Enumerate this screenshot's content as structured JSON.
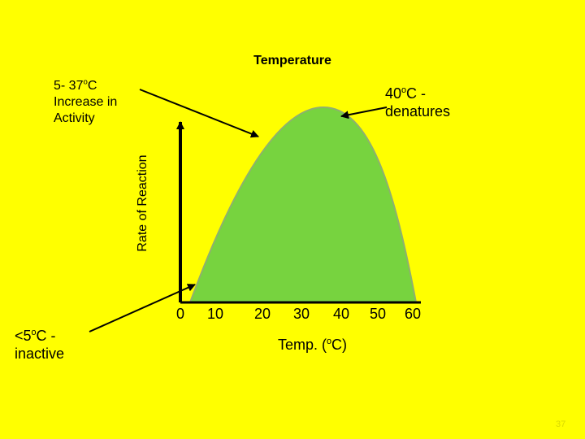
{
  "title": "Temperature",
  "annotations": {
    "range_line1_pre": "5- 37",
    "range_line1_sup": "o",
    "range_line1_post": "C",
    "range_line2": "Increase in",
    "range_line3": "Activity",
    "denature_line1_pre": "40",
    "denature_line1_sup": "o",
    "denature_line1_post": "C -",
    "denature_line2": "denatures",
    "inactive_line1_pre": "<5",
    "inactive_line1_sup": "o",
    "inactive_line1_post": "C -",
    "inactive_line2": "inactive"
  },
  "axes": {
    "ylabel": "Rate of Reaction",
    "xlabel_pre": "Temp. (",
    "xlabel_sup": "o",
    "xlabel_post": "C)",
    "x_ticks": [
      "0",
      "10",
      "20",
      "30",
      "40",
      "50",
      "60"
    ]
  },
  "colors": {
    "background": "#ffff00",
    "curve_fill": "#77d33f",
    "axis": "#000000"
  },
  "slide_number": "37"
}
